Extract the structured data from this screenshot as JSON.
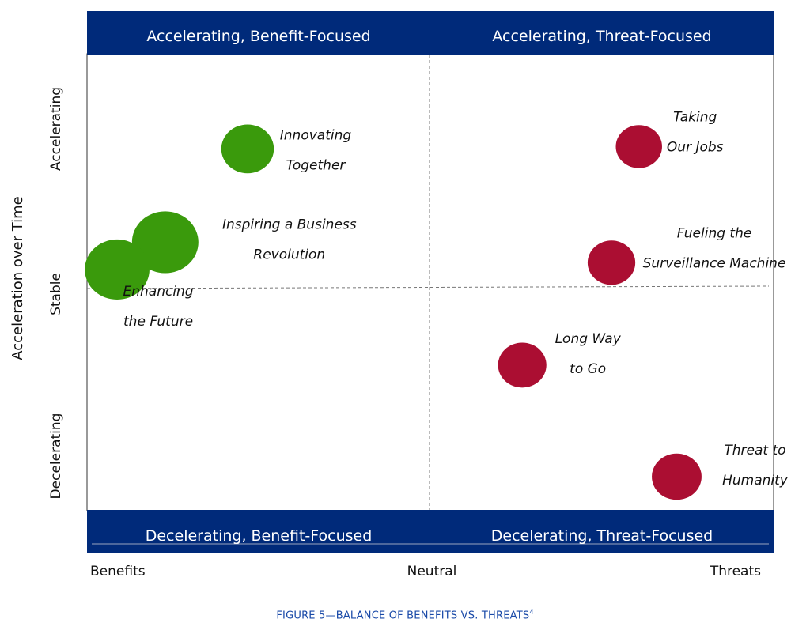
{
  "chart_data": {
    "type": "scatter",
    "x_axis": {
      "ticks": [
        "Benefits",
        "Neutral",
        "Threats"
      ],
      "range": [
        -1,
        1
      ]
    },
    "y_axis": {
      "title": "Acceleration over Time",
      "ticks": [
        "Decelerating",
        "Stable",
        "Accelerating"
      ],
      "range": [
        -1,
        1
      ]
    },
    "quadrants": {
      "top_left": "Accelerating, Benefit-Focused",
      "top_right": "Accelerating, Threat-Focused",
      "bottom_left": "Decelerating, Benefit-Focused",
      "bottom_right": "Decelerating, Threat-Focused"
    },
    "points": [
      {
        "label": [
          "Innovating",
          "Together"
        ],
        "x": -0.53,
        "y": 0.61,
        "size": 0.6,
        "color": "#3a9a0c"
      },
      {
        "label": [
          "Inspiring a Business",
          "Revolution"
        ],
        "x": -0.77,
        "y": 0.2,
        "size": 1.0,
        "color": "#3a9a0c"
      },
      {
        "label": [
          "Enhancing",
          "the Future"
        ],
        "x": -0.91,
        "y": 0.08,
        "size": 0.95,
        "color": "#3a9a0c"
      },
      {
        "label": [
          "Taking",
          "Our Jobs"
        ],
        "x": 0.61,
        "y": 0.62,
        "size": 0.42,
        "color": "#ab0e32"
      },
      {
        "label": [
          "Fueling the",
          "Surveillance Machine"
        ],
        "x": 0.53,
        "y": 0.11,
        "size": 0.46,
        "color": "#ab0e32"
      },
      {
        "label": [
          "Long Way",
          "to Go"
        ],
        "x": 0.27,
        "y": -0.34,
        "size": 0.48,
        "color": "#ab0e32"
      },
      {
        "label": [
          "Threat to",
          "Humanity"
        ],
        "x": 0.72,
        "y": -0.83,
        "size": 0.52,
        "color": "#ab0e32"
      }
    ],
    "banner_color": "#002a7a",
    "caption": "FIGURE 5—BALANCE OF BENEFITS VS. THREATS",
    "caption_ref": "4",
    "caption_color": "#1a4aa8"
  }
}
